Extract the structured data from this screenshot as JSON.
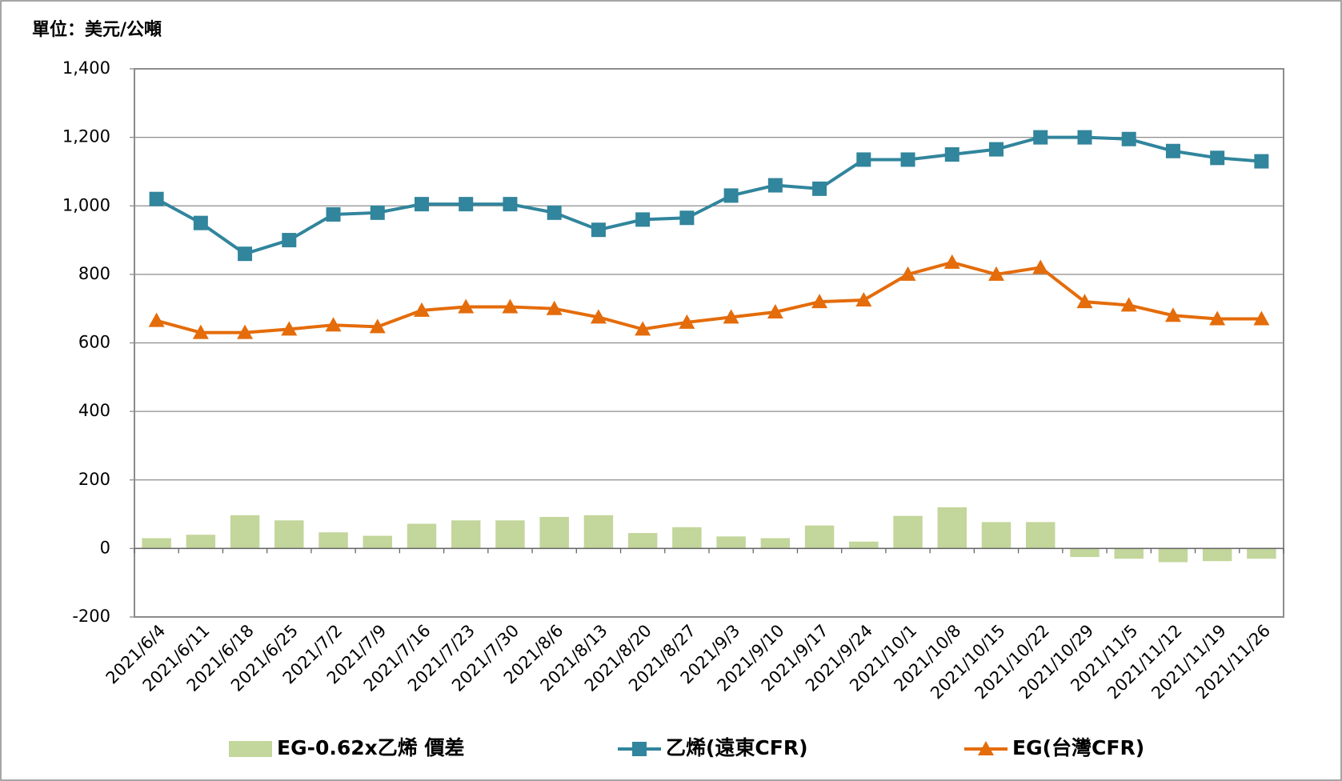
{
  "chart_data": {
    "type": "combo",
    "unit_label": "單位：美元/公噸",
    "categories": [
      "2021/6/4",
      "2021/6/11",
      "2021/6/18",
      "2021/6/25",
      "2021/7/2",
      "2021/7/9",
      "2021/7/16",
      "2021/7/23",
      "2021/7/30",
      "2021/8/6",
      "2021/8/13",
      "2021/8/20",
      "2021/8/27",
      "2021/9/3",
      "2021/9/10",
      "2021/9/17",
      "2021/9/24",
      "2021/10/1",
      "2021/10/8",
      "2021/10/15",
      "2021/10/22",
      "2021/10/29",
      "2021/11/5",
      "2021/11/12",
      "2021/11/19",
      "2021/11/26"
    ],
    "series": [
      {
        "name": "EG-0.62x乙烯 價差",
        "type": "bar",
        "color": "#c3d69b",
        "values": [
          30,
          40,
          97,
          82,
          47,
          37,
          72,
          82,
          82,
          92,
          97,
          45,
          62,
          35,
          30,
          67,
          20,
          95,
          120,
          77,
          77,
          -25,
          -30,
          -40,
          -37,
          -30
        ]
      },
      {
        "name": "乙烯(遠東CFR)",
        "type": "line",
        "marker": "square",
        "color": "#31859c",
        "values": [
          1020,
          950,
          860,
          900,
          975,
          980,
          1005,
          1005,
          1005,
          980,
          930,
          960,
          965,
          1030,
          1060,
          1050,
          1135,
          1135,
          1150,
          1165,
          1200,
          1200,
          1195,
          1160,
          1140,
          1130
        ]
      },
      {
        "name": "EG(台灣CFR)",
        "type": "line",
        "marker": "triangle",
        "color": "#e46c0a",
        "values": [
          665,
          630,
          630,
          640,
          652,
          647,
          695,
          705,
          705,
          700,
          675,
          640,
          660,
          675,
          690,
          720,
          725,
          800,
          835,
          800,
          820,
          720,
          710,
          680,
          670,
          670
        ]
      }
    ],
    "ylim": [
      -200,
      1400
    ],
    "yticks": [
      -200,
      0,
      200,
      400,
      600,
      800,
      {
        "value": 1000,
        "label": "1,000"
      },
      {
        "value": 1200,
        "label": "1,200"
      },
      {
        "value": 1400,
        "label": "1,400"
      }
    ],
    "grid": true,
    "legend": "bottom"
  }
}
